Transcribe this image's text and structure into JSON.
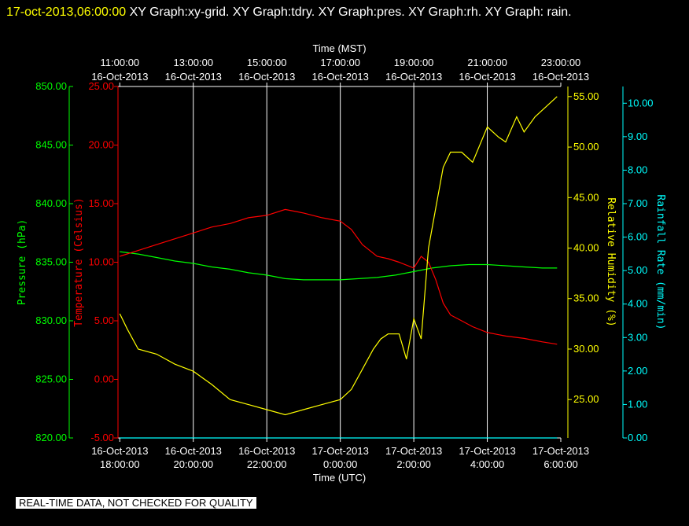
{
  "header": {
    "timestamp": "17-oct-2013,06:00:00",
    "title_rest": "  XY Graph:xy-grid.  XY Graph:tdry.  XY Graph:pres.  XY Graph:rh.  XY Graph: rain."
  },
  "footer": {
    "disclaimer": "REAL-TIME DATA, NOT CHECKED FOR QUALITY"
  },
  "chart_data": {
    "type": "line",
    "top_axis": {
      "label": "Time (MST)",
      "ticks": [
        [
          "11:00:00",
          "16-Oct-2013"
        ],
        [
          "13:00:00",
          "16-Oct-2013"
        ],
        [
          "15:00:00",
          "16-Oct-2013"
        ],
        [
          "17:00:00",
          "16-Oct-2013"
        ],
        [
          "19:00:00",
          "16-Oct-2013"
        ],
        [
          "21:00:00",
          "16-Oct-2013"
        ],
        [
          "23:00:00",
          "16-Oct-2013"
        ]
      ]
    },
    "bottom_axis": {
      "label": "Time (UTC)",
      "ticks": [
        [
          "16-Oct-2013",
          "18:00:00"
        ],
        [
          "16-Oct-2013",
          "20:00:00"
        ],
        [
          "16-Oct-2013",
          "22:00:00"
        ],
        [
          "17-Oct-2013",
          "0:00:00"
        ],
        [
          "17-Oct-2013",
          "2:00:00"
        ],
        [
          "17-Oct-2013",
          "4:00:00"
        ],
        [
          "17-Oct-2013",
          "6:00:00"
        ]
      ],
      "xlim": [
        17.95,
        30.0
      ]
    },
    "grid": true,
    "axes": {
      "pressure": {
        "label": "Pressure (hPa)",
        "color": "#00ff00",
        "ylim": [
          820,
          850
        ],
        "ticks": [
          "820.00",
          "825.00",
          "830.00",
          "835.00",
          "840.00",
          "845.00",
          "850.00"
        ]
      },
      "temperature": {
        "label": "Temperature (Celsius)",
        "color": "#ff0000",
        "ylim": [
          -5,
          25
        ],
        "ticks": [
          "-5.00",
          "0.00",
          "5.00",
          "10.00",
          "15.00",
          "20.00",
          "25.00"
        ]
      },
      "humidity": {
        "label": "Relative Humidity (%)",
        "color": "#ffff00",
        "ylim": [
          21.2,
          56.0
        ],
        "ticks": [
          "25.00",
          "30.00",
          "35.00",
          "40.00",
          "45.00",
          "50.00",
          "55.00"
        ]
      },
      "rain": {
        "label": "Rainfall Rate (mm/min)",
        "color": "#00ffff",
        "ylim": [
          0,
          10.5
        ],
        "ticks": [
          "0.00",
          "1.00",
          "2.00",
          "3.00",
          "4.00",
          "5.00",
          "6.00",
          "7.00",
          "8.00",
          "9.00",
          "10.00"
        ]
      }
    },
    "series": [
      {
        "axis": "pressure",
        "color": "#00ff00",
        "x": [
          18.0,
          18.5,
          19.0,
          19.5,
          20.0,
          20.5,
          21.0,
          21.5,
          22.0,
          22.5,
          23.0,
          23.5,
          24.0,
          24.5,
          25.0,
          25.5,
          26.0,
          26.5,
          27.0,
          27.5,
          28.0,
          28.5,
          29.0,
          29.5,
          29.9
        ],
        "y": [
          835.9,
          835.7,
          835.4,
          835.1,
          834.9,
          834.6,
          834.4,
          834.1,
          833.9,
          833.6,
          833.5,
          833.5,
          833.5,
          833.6,
          833.7,
          833.9,
          834.2,
          834.5,
          834.7,
          834.8,
          834.8,
          834.7,
          834.6,
          834.5,
          834.5
        ]
      },
      {
        "axis": "temperature",
        "color": "#ff0000",
        "x": [
          18.0,
          18.5,
          19.0,
          19.5,
          20.0,
          20.5,
          21.0,
          21.5,
          22.0,
          22.5,
          23.0,
          23.5,
          24.0,
          24.3,
          24.6,
          25.0,
          25.3,
          25.6,
          26.0,
          26.2,
          26.4,
          26.6,
          26.8,
          27.0,
          27.3,
          27.6,
          28.0,
          28.5,
          29.0,
          29.5,
          29.9
        ],
        "y": [
          10.5,
          11.0,
          11.5,
          12.0,
          12.5,
          13.0,
          13.3,
          13.8,
          14.0,
          14.5,
          14.2,
          13.8,
          13.5,
          12.8,
          11.5,
          10.5,
          10.3,
          10.0,
          9.5,
          10.5,
          10.0,
          8.5,
          6.5,
          5.5,
          5.0,
          4.5,
          4.0,
          3.7,
          3.5,
          3.2,
          3.0
        ]
      },
      {
        "axis": "humidity",
        "color": "#ffff00",
        "x": [
          18.0,
          18.2,
          18.5,
          19.0,
          19.5,
          20.0,
          20.5,
          21.0,
          21.5,
          22.0,
          22.5,
          23.0,
          23.5,
          24.0,
          24.3,
          24.6,
          24.9,
          25.1,
          25.3,
          25.6,
          25.8,
          26.0,
          26.2,
          26.4,
          26.6,
          26.8,
          27.0,
          27.3,
          27.6,
          28.0,
          28.3,
          28.5,
          28.8,
          29.0,
          29.3,
          29.6,
          29.9
        ],
        "y": [
          33.5,
          32.0,
          30.0,
          29.5,
          28.5,
          27.8,
          26.5,
          25.0,
          24.5,
          24.0,
          23.5,
          24.0,
          24.5,
          25.0,
          26.0,
          28.0,
          30.0,
          31.0,
          31.5,
          31.5,
          29.0,
          33.0,
          31.0,
          40.0,
          44.0,
          48.0,
          49.5,
          49.5,
          48.5,
          52.0,
          51.0,
          50.5,
          53.0,
          51.5,
          53.0,
          54.0,
          55.0
        ]
      },
      {
        "axis": "rain",
        "color": "#00ffff",
        "x": [
          18.0,
          29.9
        ],
        "y": [
          0.0,
          0.0
        ]
      }
    ]
  }
}
